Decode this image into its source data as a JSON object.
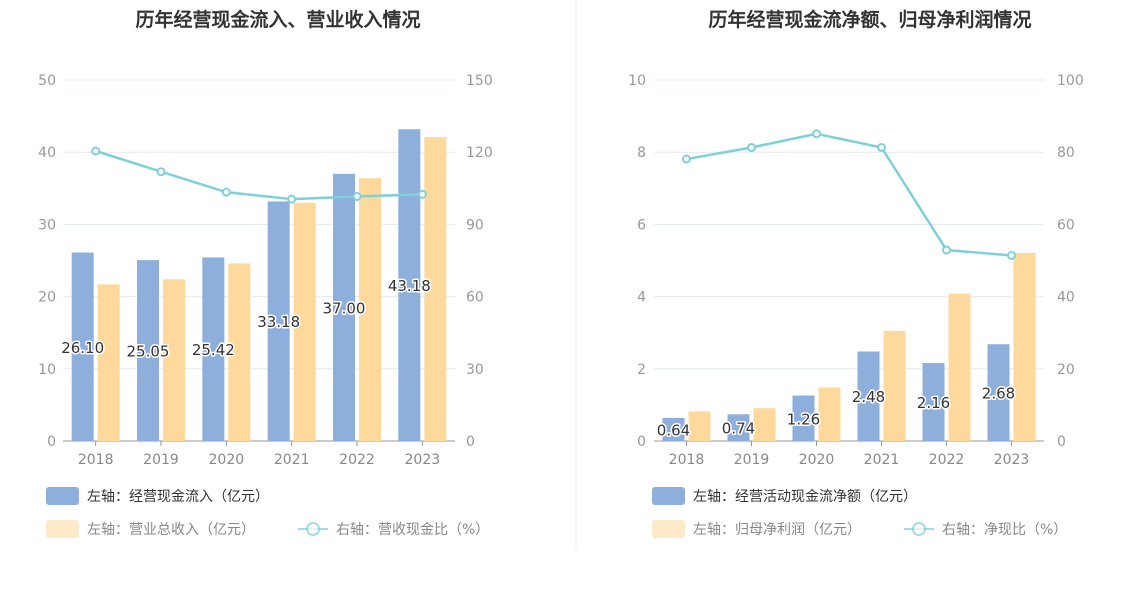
{
  "colors": {
    "bar_left": "#8eaedc",
    "bar_right": "#fed99b",
    "line": "#7fd0d8",
    "grid": "#e3e8f2",
    "axis": "#999999",
    "legend_text_primary": "#333333",
    "legend_text_secondary": "#888888",
    "divider": "#eeeeee"
  },
  "chart_data": [
    {
      "type": "bar",
      "title": "历年经营现金流入、营业收入情况",
      "categories": [
        "2018",
        "2019",
        "2020",
        "2021",
        "2022",
        "2023"
      ],
      "ylim_left": [
        0,
        50
      ],
      "yticks_left": [
        "0",
        "10",
        "20",
        "30",
        "40",
        "50"
      ],
      "ylim_right": [
        0,
        150
      ],
      "yticks_right": [
        "0",
        "30",
        "60",
        "90",
        "120",
        "150"
      ],
      "grid": true,
      "legend_position": "bottom",
      "series": [
        {
          "name": "左轴：经营现金流入（亿元）",
          "axis": "left",
          "type": "bar",
          "values": [
            26.1,
            25.05,
            25.42,
            33.18,
            37.0,
            43.18
          ],
          "labels": [
            "26.10",
            "25.05",
            "25.42",
            "33.18",
            "37.00",
            "43.18"
          ]
        },
        {
          "name": "左轴：营业总收入（亿元）",
          "axis": "left",
          "type": "bar",
          "values": [
            21.7,
            22.4,
            24.6,
            33.0,
            36.4,
            42.1
          ]
        },
        {
          "name": "右轴：营收现金比（%）",
          "axis": "right",
          "type": "line",
          "values": [
            120.5,
            111.9,
            103.4,
            100.5,
            101.6,
            102.5
          ]
        }
      ]
    },
    {
      "type": "bar",
      "title": "历年经营现金流净额、归母净利润情况",
      "categories": [
        "2018",
        "2019",
        "2020",
        "2021",
        "2022",
        "2023"
      ],
      "ylim_left": [
        0,
        10
      ],
      "yticks_left": [
        "0",
        "2",
        "4",
        "6",
        "8",
        "10"
      ],
      "ylim_right": [
        0,
        100
      ],
      "yticks_right": [
        "0",
        "20",
        "40",
        "60",
        "80",
        "100"
      ],
      "grid": true,
      "legend_position": "bottom",
      "series": [
        {
          "name": "左轴：经营活动现金流净额（亿元）",
          "axis": "left",
          "type": "bar",
          "values": [
            0.64,
            0.74,
            1.26,
            2.48,
            2.16,
            2.68
          ],
          "labels": [
            "0.64",
            "0.74",
            "1.26",
            "2.48",
            "2.16",
            "2.68"
          ]
        },
        {
          "name": "左轴：归母净利润（亿元）",
          "axis": "left",
          "type": "bar",
          "values": [
            0.82,
            0.91,
            1.48,
            3.05,
            4.08,
            5.21
          ]
        },
        {
          "name": "右轴：净现比（%）",
          "axis": "right",
          "type": "line",
          "values": [
            78.1,
            81.3,
            85.1,
            81.3,
            52.9,
            51.4
          ]
        }
      ]
    }
  ]
}
